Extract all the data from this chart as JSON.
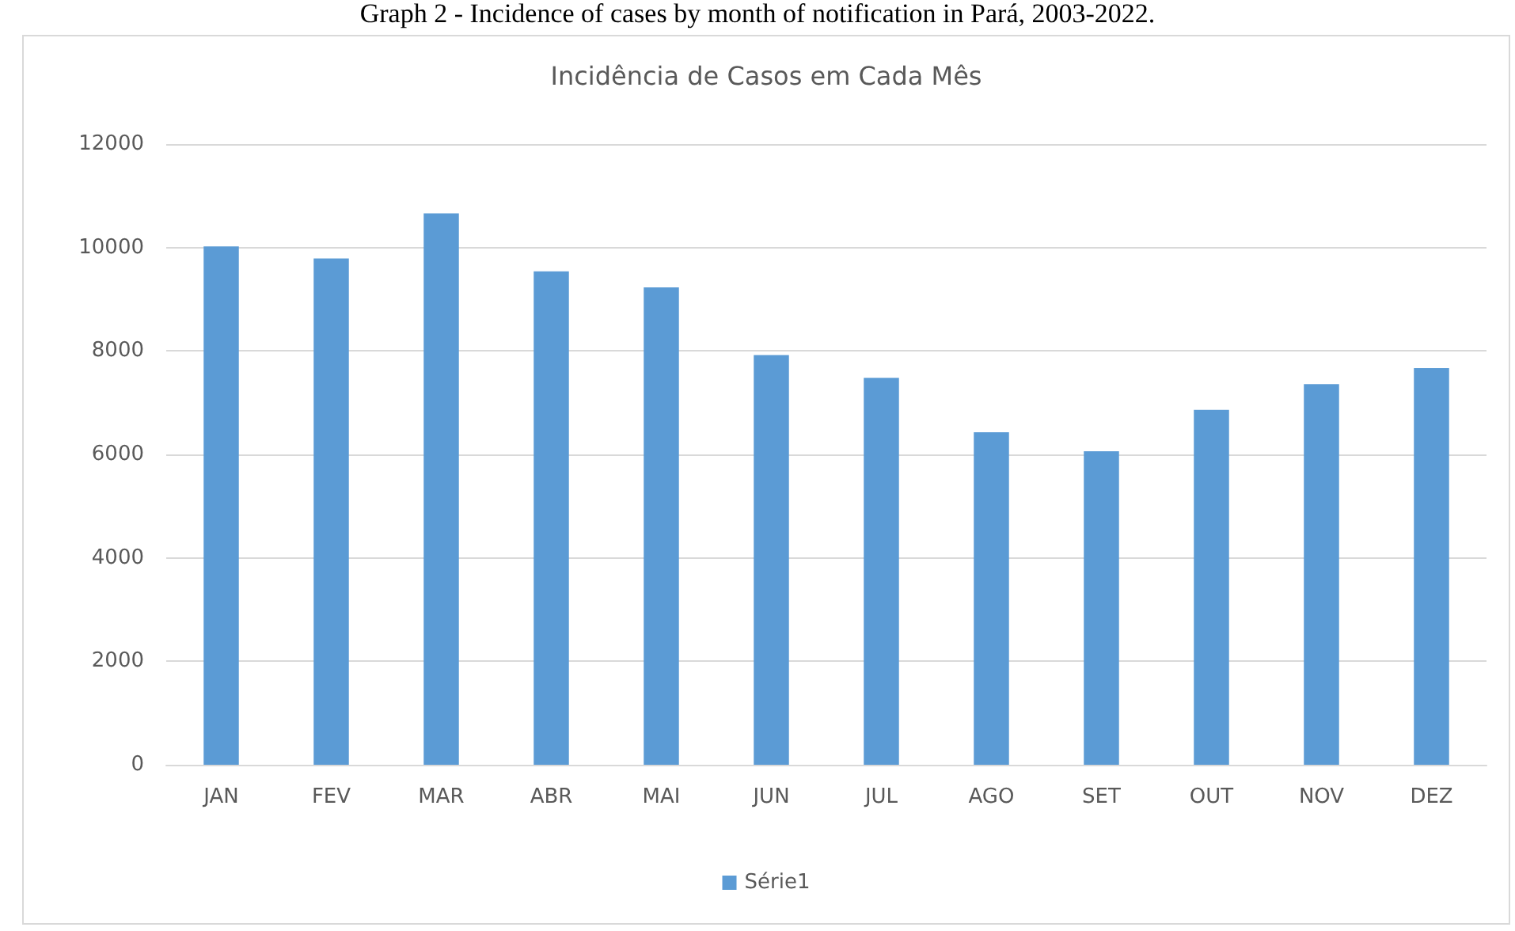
{
  "chart_data": {
    "type": "bar",
    "title": "Incidência de Casos em Cada Mês",
    "annotations": [
      "Graph 2 - Incidence of cases by month of notification in Pará, 2003-2022."
    ],
    "categories": [
      "JAN",
      "FEV",
      "MAR",
      "ABR",
      "MAI",
      "JUN",
      "JUL",
      "AGO",
      "SET",
      "OUT",
      "NOV",
      "DEZ"
    ],
    "series": [
      {
        "name": "Série1",
        "color": "#5b9bd5",
        "values": [
          10020,
          9790,
          10660,
          9540,
          9230,
          7920,
          7480,
          6430,
          6060,
          6860,
          7360,
          7670
        ]
      }
    ],
    "ylim": [
      0,
      12000
    ],
    "yticks": [
      0,
      2000,
      4000,
      6000,
      8000,
      10000,
      12000
    ],
    "grid": "y",
    "legend": "bottom"
  }
}
